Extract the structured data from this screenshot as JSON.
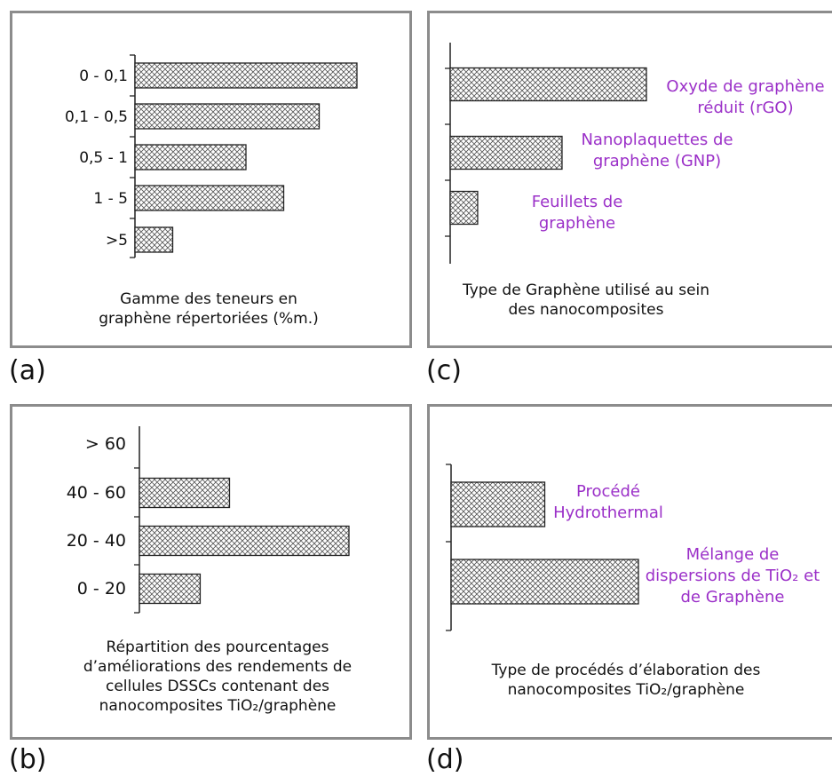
{
  "panels": {
    "a": {
      "letter": "(a)",
      "caption": "Gamme des teneurs en graphène répertoriées (%m.)"
    },
    "b": {
      "letter": "(b)",
      "caption": "Répartition des pourcentages d’améliorations des rendements de cellules DSSCs contenant des nanocomposites TiO₂/graphène"
    },
    "c": {
      "letter": "(c)",
      "caption": "Type de Graphène utilisé au sein des nanocomposites"
    },
    "d": {
      "letter": "(d)",
      "caption": "Type de procédés d’élaboration des nanocomposites TiO₂/graphène"
    }
  },
  "colors": {
    "label_purple": "#9b30c8",
    "frame": "#8c8c8c",
    "bar_stroke": "#222222"
  },
  "chart_data": [
    {
      "id": "a",
      "type": "bar",
      "orientation": "horizontal",
      "categories": [
        "0 - 0,1",
        "0,1 - 0,5",
        "0,5 - 1",
        "1 - 5",
        ">5"
      ],
      "values": [
        100,
        83,
        50,
        67,
        17
      ],
      "xlim": [
        0,
        100
      ],
      "title": "Gamme des teneurs en graphène répertoriées (%m.)"
    },
    {
      "id": "b",
      "type": "bar",
      "orientation": "horizontal",
      "categories": [
        "> 60",
        "40 - 60",
        "20 - 40",
        "0 - 20"
      ],
      "values": [
        0,
        43,
        100,
        29
      ],
      "xlim": [
        0,
        100
      ],
      "title": "Répartition des pourcentages d’améliorations des rendements de cellules DSSCs contenant des nanocomposites TiO₂/graphène"
    },
    {
      "id": "c",
      "type": "bar",
      "orientation": "horizontal",
      "categories": [
        "Oxyde de graphène réduit (rGO)",
        "Nanoplaquettes de graphène (GNP)",
        "Feuillets de graphène"
      ],
      "values": [
        100,
        57,
        14
      ],
      "xlim": [
        0,
        100
      ],
      "title": "Type de Graphène utilisé au sein des nanocomposites"
    },
    {
      "id": "d",
      "type": "bar",
      "orientation": "horizontal",
      "categories": [
        "Procédé Hydrothermal",
        "Mélange de dispersions de TiO₂ et de Graphène"
      ],
      "values": [
        50,
        100
      ],
      "xlim": [
        0,
        100
      ],
      "title": "Type de procédés d’élaboration des nanocomposites TiO₂/graphène"
    }
  ]
}
